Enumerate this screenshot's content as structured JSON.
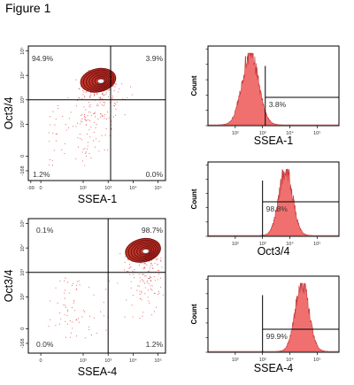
{
  "figure": {
    "title": "Figure 1"
  },
  "chart_data": [
    {
      "type": "scatter",
      "panel": "dotplot-top",
      "xlabel": "SSEA-1",
      "ylabel": "Oct3/4",
      "x_ticks": [
        "-99",
        "0",
        "10²",
        "10³",
        "10⁴",
        "10⁵"
      ],
      "y_ticks": [
        "-168",
        "0",
        "10²",
        "10³",
        "10⁴",
        "10⁵"
      ],
      "quadrants": {
        "top_left": "94.9%",
        "top_right": "3.9%",
        "bottom_left": "1.2%",
        "bottom_right": "0.0%"
      },
      "gate": {
        "x": 3.1,
        "y": 3.0
      },
      "population": {
        "center_x": 2.6,
        "center_y": 3.8
      },
      "colors": {
        "dots": "#e05a5a",
        "contour": "#7a0f0f"
      }
    },
    {
      "type": "area",
      "panel": "histogram-top",
      "ylabel": "Count",
      "xlabel": "SSEA-1",
      "x_ticks": [
        "10²",
        "10³",
        "10⁴",
        "10⁵"
      ],
      "gate_label": "3.8%",
      "gate_start": 3.1,
      "peak": 2.55,
      "width": 0.3,
      "color": "#f07070"
    },
    {
      "type": "area",
      "panel": "histogram-middle",
      "ylabel": "Count",
      "xlabel": "Oct3/4",
      "x_ticks": [
        "10²",
        "10³",
        "10⁴",
        "10⁵"
      ],
      "gate_label": "98.8%",
      "gate_start": 3.0,
      "peak": 3.85,
      "width": 0.25,
      "color": "#f07070"
    },
    {
      "type": "scatter",
      "panel": "dotplot-bottom",
      "xlabel": "SSEA-4",
      "ylabel": "Oct3/4",
      "x_ticks": [
        "0",
        "10²",
        "10³",
        "10⁴",
        "10⁵"
      ],
      "y_ticks": [
        "-168",
        "0",
        "10²",
        "10³",
        "10⁴",
        "10⁵"
      ],
      "quadrants": {
        "top_left": "0.1%",
        "top_right": "98.7%",
        "bottom_left": "0.0%",
        "bottom_right": "1.2%"
      },
      "gate": {
        "x": 3.0,
        "y": 3.0
      },
      "population": {
        "center_x": 4.4,
        "center_y": 3.9
      },
      "colors": {
        "dots": "#e05a5a",
        "contour": "#7a0f0f"
      }
    },
    {
      "type": "area",
      "panel": "histogram-bottom",
      "ylabel": "Count",
      "xlabel": "SSEA-4",
      "x_ticks": [
        "10²",
        "10³",
        "10⁴",
        "10⁵"
      ],
      "gate_label": "99.9%",
      "gate_start": 3.0,
      "peak": 4.45,
      "width": 0.25,
      "color": "#f07070"
    }
  ]
}
